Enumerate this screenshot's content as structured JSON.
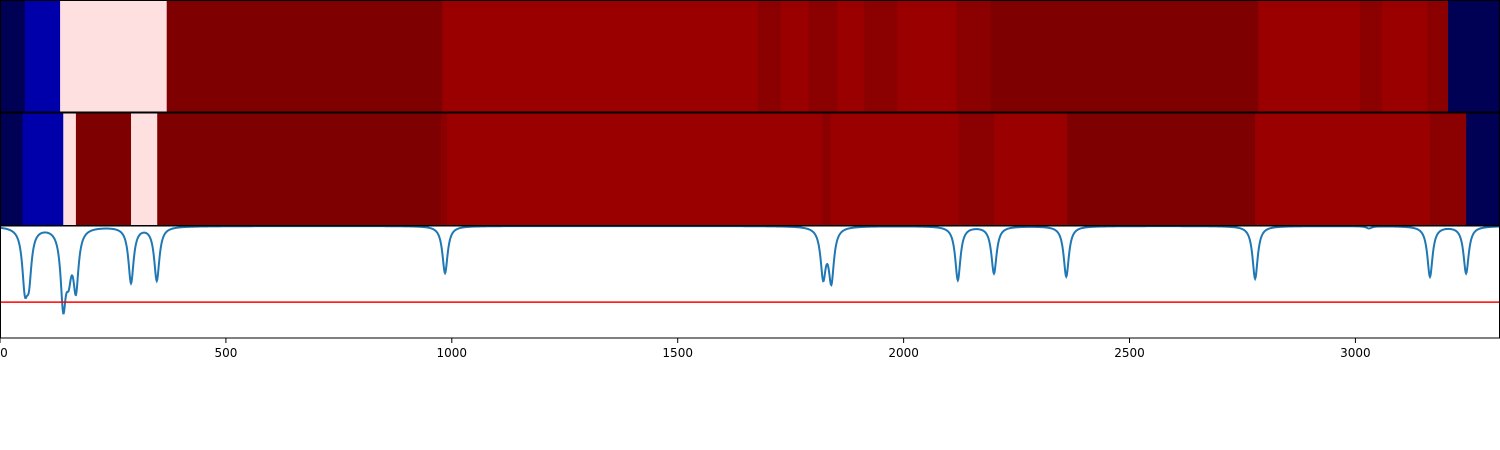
{
  "chart_data": {
    "type": "heatmap",
    "title": "",
    "xlabel": "",
    "ylabel": "",
    "xlim": [
      0,
      3320
    ],
    "xticks": [
      0,
      500,
      1000,
      1500,
      2000,
      2500,
      3000
    ],
    "xtick_labels": [
      "0",
      "500",
      "1000",
      "1500",
      "2000",
      "2500",
      "3000"
    ],
    "colors": {
      "navy": "#000055",
      "blue": "#0000aa",
      "pink": "#ffe0e0",
      "darkred": "#7f0000",
      "red": "#9a0000",
      "midred": "#8b0000",
      "line": "#1f77b4",
      "threshold": "#ff0000"
    },
    "row1_segments": [
      {
        "start": 0,
        "end": 55,
        "color": "navy"
      },
      {
        "start": 55,
        "end": 133,
        "color": "blue"
      },
      {
        "start": 133,
        "end": 369,
        "color": "pink"
      },
      {
        "start": 369,
        "end": 979,
        "color": "darkred"
      },
      {
        "start": 979,
        "end": 1677,
        "color": "red"
      },
      {
        "start": 1677,
        "end": 1728,
        "color": "midred"
      },
      {
        "start": 1728,
        "end": 1790,
        "color": "red"
      },
      {
        "start": 1790,
        "end": 1853,
        "color": "midred"
      },
      {
        "start": 1853,
        "end": 1913,
        "color": "red"
      },
      {
        "start": 1913,
        "end": 1986,
        "color": "midred"
      },
      {
        "start": 1986,
        "end": 2117,
        "color": "red"
      },
      {
        "start": 2117,
        "end": 2193,
        "color": "midred"
      },
      {
        "start": 2193,
        "end": 2785,
        "color": "darkred"
      },
      {
        "start": 2785,
        "end": 3010,
        "color": "red"
      },
      {
        "start": 3010,
        "end": 3058,
        "color": "midred"
      },
      {
        "start": 3058,
        "end": 3159,
        "color": "red"
      },
      {
        "start": 3159,
        "end": 3205,
        "color": "midred"
      },
      {
        "start": 3205,
        "end": 3320,
        "color": "navy"
      }
    ],
    "row2_segments": [
      {
        "start": 0,
        "end": 50,
        "color": "navy"
      },
      {
        "start": 50,
        "end": 140,
        "color": "blue"
      },
      {
        "start": 140,
        "end": 168,
        "color": "pink"
      },
      {
        "start": 168,
        "end": 290,
        "color": "darkred"
      },
      {
        "start": 290,
        "end": 348,
        "color": "pink"
      },
      {
        "start": 348,
        "end": 976,
        "color": "darkred"
      },
      {
        "start": 976,
        "end": 990,
        "color": "midred"
      },
      {
        "start": 990,
        "end": 1820,
        "color": "red"
      },
      {
        "start": 1820,
        "end": 1838,
        "color": "midred"
      },
      {
        "start": 1838,
        "end": 2122,
        "color": "red"
      },
      {
        "start": 2122,
        "end": 2200,
        "color": "midred"
      },
      {
        "start": 2200,
        "end": 2362,
        "color": "red"
      },
      {
        "start": 2362,
        "end": 2778,
        "color": "darkred"
      },
      {
        "start": 2778,
        "end": 3165,
        "color": "red"
      },
      {
        "start": 3165,
        "end": 3245,
        "color": "midred"
      },
      {
        "start": 3245,
        "end": 3320,
        "color": "navy"
      }
    ],
    "line_ylim": [
      0,
      1
    ],
    "line_baseline": 1.0,
    "line_dips": [
      {
        "x": 55,
        "depth": 0.47
      },
      {
        "x": 64,
        "depth": 0.4
      },
      {
        "x": 140,
        "depth": 0.66
      },
      {
        "x": 152,
        "depth": 0.32
      },
      {
        "x": 168,
        "depth": 0.52
      },
      {
        "x": 290,
        "depth": 0.5
      },
      {
        "x": 347,
        "depth": 0.48
      },
      {
        "x": 985,
        "depth": 0.42
      },
      {
        "x": 1822,
        "depth": 0.43
      },
      {
        "x": 1840,
        "depth": 0.47
      },
      {
        "x": 2120,
        "depth": 0.48
      },
      {
        "x": 2200,
        "depth": 0.42
      },
      {
        "x": 2360,
        "depth": 0.45
      },
      {
        "x": 2778,
        "depth": 0.47
      },
      {
        "x": 3030,
        "depth": 0.02
      },
      {
        "x": 3165,
        "depth": 0.45
      },
      {
        "x": 3245,
        "depth": 0.42
      }
    ],
    "threshold": 0.32
  }
}
